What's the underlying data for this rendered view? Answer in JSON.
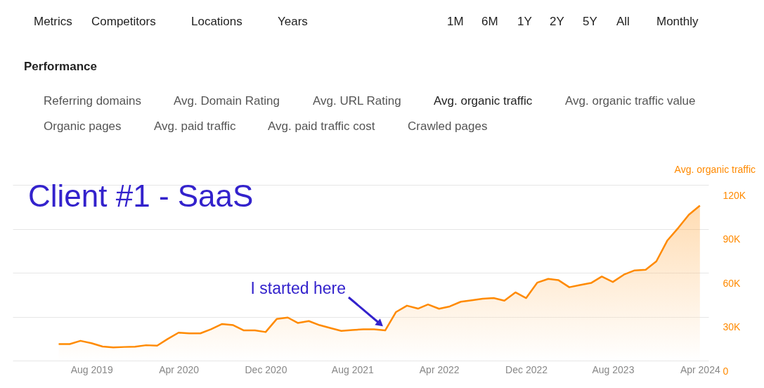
{
  "chart_data": {
    "type": "area",
    "title": "Client #1 - SaaS",
    "ylabel": "Avg. organic traffic",
    "x": [
      "2019-05",
      "2019-06",
      "2019-07",
      "2019-08",
      "2019-09",
      "2019-10",
      "2019-11",
      "2019-12",
      "2020-01",
      "2020-02",
      "2020-03",
      "2020-04",
      "2020-05",
      "2020-06",
      "2020-07",
      "2020-08",
      "2020-09",
      "2020-10",
      "2020-11",
      "2020-12",
      "2021-01",
      "2021-02",
      "2021-03",
      "2021-04",
      "2021-05",
      "2021-06",
      "2021-07",
      "2021-08",
      "2021-09",
      "2021-10",
      "2021-11",
      "2021-12",
      "2022-01",
      "2022-02",
      "2022-03",
      "2022-04",
      "2022-05",
      "2022-06",
      "2022-07",
      "2022-08",
      "2022-09",
      "2022-10",
      "2022-11",
      "2022-12",
      "2023-01",
      "2023-02",
      "2023-03",
      "2023-04",
      "2023-05",
      "2023-06",
      "2023-07",
      "2023-08",
      "2023-09",
      "2023-10",
      "2023-11",
      "2023-12",
      "2024-01",
      "2024-02",
      "2024-03",
      "2024-04"
    ],
    "series": [
      {
        "color": "#ff8a00",
        "values": [
          11300,
          11300,
          13500,
          11900,
          9600,
          9000,
          9300,
          9500,
          10500,
          10200,
          14700,
          19100,
          18600,
          18600,
          21400,
          25000,
          24200,
          20600,
          20600,
          19500,
          28400,
          29400,
          25700,
          27000,
          24200,
          22200,
          20300,
          20900,
          21400,
          21400,
          20600,
          33100,
          37500,
          35500,
          38300,
          35400,
          37000,
          40200,
          41200,
          42200,
          42700,
          40900,
          46600,
          42700,
          53200,
          55800,
          55000,
          50100,
          51600,
          53000,
          57400,
          53700,
          58700,
          61600,
          62000,
          67800,
          82100,
          90800,
          99600,
          105800
        ]
      }
    ],
    "xlim": [
      "2018-12-23",
      "2024-04-25"
    ],
    "xticks": [
      {
        "value": "2019-08",
        "label": "Aug 2019"
      },
      {
        "value": "2020-04",
        "label": "Apr 2020"
      },
      {
        "value": "2020-12",
        "label": "Dec 2020"
      },
      {
        "value": "2021-08",
        "label": "Aug 2021"
      },
      {
        "value": "2022-04",
        "label": "Apr 2022"
      },
      {
        "value": "2022-12",
        "label": "Dec 2022"
      },
      {
        "value": "2023-08",
        "label": "Aug 2023"
      },
      {
        "value": "2024-04",
        "label": "Apr 2024"
      }
    ],
    "ylim": [
      0,
      120000
    ],
    "yticks": [
      0,
      {
        "value": 30000,
        "label": "30K"
      },
      {
        "value": 60000,
        "label": "60K"
      },
      {
        "value": 90000,
        "label": "90K"
      },
      {
        "value": 120000,
        "label": "120K"
      }
    ],
    "grid": "y",
    "annotations": [
      "Metrics",
      "Competitors",
      "Locations",
      "Years",
      "1M",
      "6M",
      "1Y",
      "2Y",
      "5Y",
      "All",
      "Monthly",
      "Performance",
      "Referring domains",
      "Avg. Domain Rating",
      "Avg. URL Rating",
      "Avg. organic traffic",
      "Avg. organic traffic value",
      "Organic pages",
      "Avg. paid traffic",
      "Avg. paid traffic cost",
      "Crawled pages",
      "I started here"
    ]
  }
}
